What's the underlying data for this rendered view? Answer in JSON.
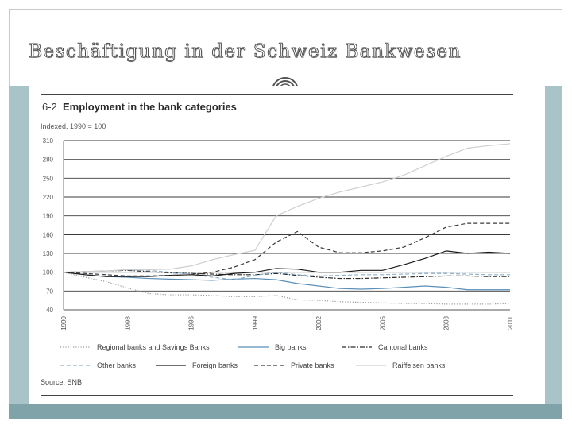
{
  "slide": {
    "title": "Beschäftigung in der Schweiz Bankwesen"
  },
  "figure": {
    "number": "6-2",
    "title": "Employment in the bank categories",
    "subtitle": "Indexed, 1990 = 100",
    "source": "Source: SNB"
  },
  "chart_data": {
    "type": "line",
    "title": "Employment in the bank categories",
    "ylabel": "Indexed, 1990 = 100",
    "ylim": [
      40,
      310
    ],
    "yticks": [
      40,
      70,
      100,
      130,
      160,
      190,
      220,
      250,
      280,
      310
    ],
    "xlim": [
      1990,
      2011
    ],
    "xticks": [
      "1990",
      "1993",
      "1996",
      "1999",
      "2002",
      "2005",
      "2008",
      "2011"
    ],
    "grid": "horizontal",
    "legend_position": "bottom",
    "x": [
      1990,
      1991,
      1992,
      1993,
      1994,
      1995,
      1996,
      1997,
      1998,
      1999,
      2000,
      2001,
      2002,
      2003,
      2004,
      2005,
      2006,
      2007,
      2008,
      2009,
      2010,
      2011
    ],
    "series": [
      {
        "name": "Regional banks and Savings Banks",
        "style": "dotted",
        "color": "#9a9a9a",
        "values": [
          100,
          92,
          85,
          75,
          66,
          64,
          64,
          63,
          61,
          61,
          63,
          56,
          55,
          53,
          52,
          51,
          50,
          50,
          49,
          49,
          49,
          50
        ]
      },
      {
        "name": "Big banks",
        "style": "solid",
        "color": "#5a8fb8",
        "values": [
          100,
          96,
          93,
          92,
          90,
          89,
          88,
          87,
          89,
          90,
          88,
          82,
          78,
          74,
          73,
          74,
          76,
          78,
          76,
          72,
          72,
          72
        ]
      },
      {
        "name": "Cantonal banks",
        "style": "dashdot",
        "color": "#2a2a2a",
        "values": [
          100,
          101,
          102,
          103,
          101,
          99,
          98,
          97,
          96,
          96,
          98,
          95,
          92,
          90,
          90,
          91,
          92,
          93,
          94,
          94,
          93,
          93
        ]
      },
      {
        "name": "Other banks",
        "style": "dashed",
        "color": "#8fb0c8",
        "values": [
          100,
          101,
          102,
          104,
          103,
          100,
          97,
          92,
          88,
          95,
          100,
          96,
          94,
          95,
          96,
          96,
          97,
          98,
          98,
          97,
          96,
          96
        ]
      },
      {
        "name": "Foreign banks",
        "style": "solid",
        "color": "#1a1a1a",
        "values": [
          100,
          96,
          93,
          93,
          93,
          95,
          96,
          94,
          98,
          100,
          106,
          105,
          100,
          100,
          103,
          103,
          112,
          122,
          134,
          130,
          132,
          130
        ]
      },
      {
        "name": "Private banks",
        "style": "dashed",
        "color": "#3a3a3a",
        "values": [
          100,
          98,
          96,
          94,
          94,
          95,
          96,
          100,
          108,
          120,
          148,
          165,
          140,
          131,
          131,
          134,
          140,
          155,
          172,
          178,
          178,
          178
        ]
      },
      {
        "name": "Raiffeisen banks",
        "style": "solid",
        "color": "#cfcfcf",
        "values": [
          100,
          101,
          102,
          104,
          104,
          105,
          110,
          120,
          128,
          135,
          190,
          205,
          218,
          228,
          236,
          244,
          255,
          270,
          285,
          298,
          302,
          305
        ]
      }
    ]
  }
}
